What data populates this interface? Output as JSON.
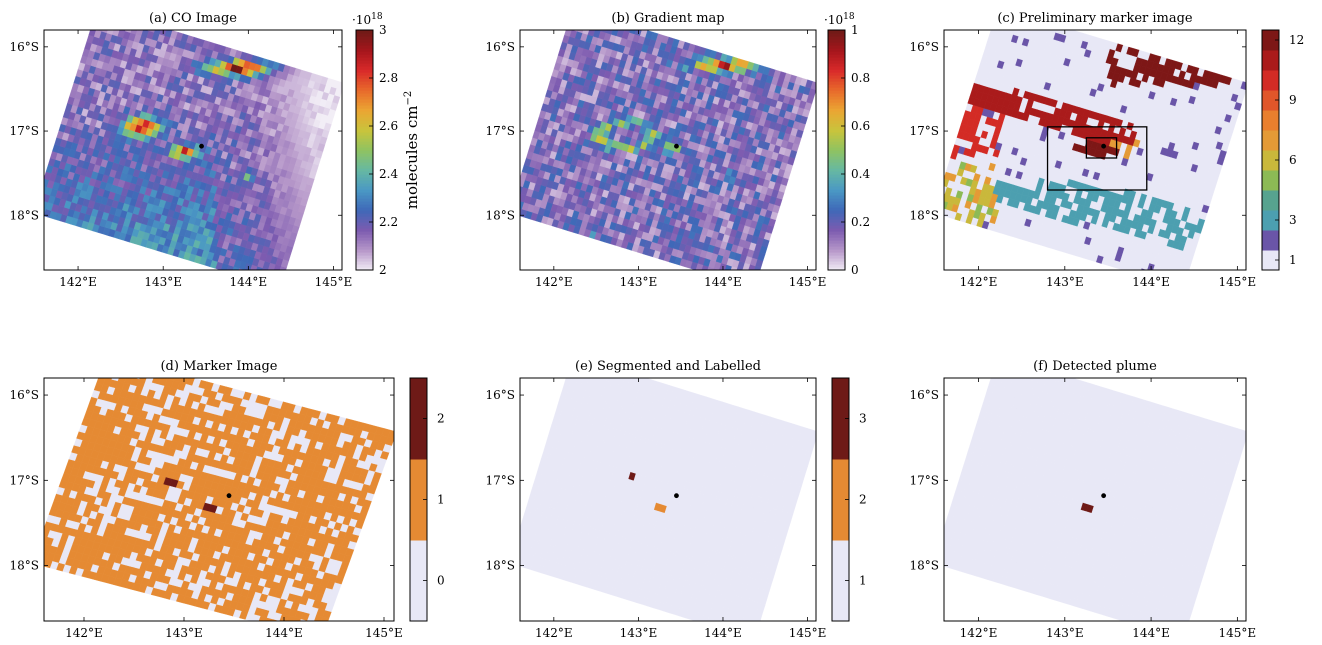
{
  "chart_data": [
    {
      "type": "heatmap",
      "title": "(a) CO Image",
      "xticks": [
        "142°E",
        "143°E",
        "144°E",
        "145°E"
      ],
      "yticks": [
        "16°S",
        "17°S",
        "18°S"
      ],
      "xlim": [
        141.6,
        145.1
      ],
      "ylim": [
        -18.65,
        -15.8
      ],
      "colorbar": {
        "range": [
          2.0,
          3.0
        ],
        "ticks": [
          "2",
          "2.2",
          "2.4",
          "2.6",
          "2.8",
          "3"
        ],
        "exponent": "·10",
        "exponent_power": "18",
        "label": "molecules cm",
        "label_power": "−2",
        "colors": [
          "#f2eef6",
          "#b697c9",
          "#7d5bb0",
          "#3f68b8",
          "#4a98c4",
          "#66b8a3",
          "#8fc361",
          "#c9c43c",
          "#eba533",
          "#e86a2b",
          "#d9292a",
          "#a4161c",
          "#6e1a17"
        ]
      },
      "marker": {
        "lon": 143.45,
        "lat": -17.18
      }
    },
    {
      "type": "heatmap",
      "title": "(b) Gradient map",
      "xticks": [
        "142°E",
        "143°E",
        "144°E",
        "145°E"
      ],
      "yticks": [
        "16°S",
        "17°S",
        "18°S"
      ],
      "xlim": [
        141.6,
        145.1
      ],
      "ylim": [
        -18.65,
        -15.8
      ],
      "colorbar": {
        "range": [
          0,
          1
        ],
        "ticks": [
          "0",
          "0.2",
          "0.4",
          "0.6",
          "0.8",
          "1"
        ],
        "exponent": "·10",
        "exponent_power": "18",
        "colors": [
          "#f2eef6",
          "#b697c9",
          "#7d5bb0",
          "#3f68b8",
          "#4a98c4",
          "#66b8a3",
          "#8fc361",
          "#c9c43c",
          "#eba533",
          "#e86a2b",
          "#d9292a",
          "#a4161c",
          "#6e1a17"
        ]
      },
      "marker": {
        "lon": 143.45,
        "lat": -17.18
      }
    },
    {
      "type": "heatmap",
      "title": "(c) Preliminary marker image",
      "xticks": [
        "142°E",
        "143°E",
        "144°E",
        "145°E"
      ],
      "yticks": [
        "16°S",
        "17°S",
        "18°S"
      ],
      "xlim": [
        141.6,
        145.1
      ],
      "ylim": [
        -18.65,
        -15.8
      ],
      "colorbar": {
        "levels": 12,
        "ticks": [
          "1",
          "3",
          "6",
          "9",
          "12"
        ],
        "colors": [
          "#e8e8f6",
          "#6a55a8",
          "#4c9fb0",
          "#57a38f",
          "#8cba55",
          "#c9b83b",
          "#e49a36",
          "#e97f2e",
          "#e0562a",
          "#d32b25",
          "#aa1b1b",
          "#7d1716"
        ]
      },
      "boxes": [
        {
          "lon": [
            142.8,
            143.95
          ],
          "lat": [
            -17.7,
            -16.95
          ]
        },
        {
          "lon": [
            143.25,
            143.6
          ],
          "lat": [
            -17.32,
            -17.08
          ]
        }
      ],
      "marker": {
        "lon": 143.45,
        "lat": -17.18
      }
    },
    {
      "type": "heatmap",
      "title": "(d) Marker Image",
      "xticks": [
        "142°E",
        "143°E",
        "144°E",
        "145°E"
      ],
      "yticks": [
        "16°S",
        "17°S",
        "18°S"
      ],
      "xlim": [
        141.6,
        145.1
      ],
      "ylim": [
        -18.65,
        -15.8
      ],
      "colorbar": {
        "levels": 3,
        "ticks": [
          "0",
          "1",
          "2"
        ],
        "colors": [
          "#e8e8f6",
          "#e58a33",
          "#6e1a17"
        ]
      },
      "marker": {
        "lon": 143.45,
        "lat": -17.18
      }
    },
    {
      "type": "heatmap",
      "title": "(e) Segmented and Labelled",
      "xticks": [
        "142°E",
        "143°E",
        "144°E",
        "145°E"
      ],
      "yticks": [
        "16°S",
        "17°S",
        "18°S"
      ],
      "xlim": [
        141.6,
        145.1
      ],
      "ylim": [
        -18.65,
        -15.8
      ],
      "colorbar": {
        "levels": 3,
        "ticks": [
          "1",
          "2",
          "3"
        ],
        "colors": [
          "#e8e8f6",
          "#e58a33",
          "#6e1a17"
        ]
      },
      "marker": {
        "lon": 143.45,
        "lat": -17.18
      }
    },
    {
      "type": "heatmap",
      "title": "(f) Detected plume",
      "xticks": [
        "142°E",
        "143°E",
        "144°E",
        "145°E"
      ],
      "yticks": [
        "16°S",
        "17°S",
        "18°S"
      ],
      "xlim": [
        141.6,
        145.1
      ],
      "ylim": [
        -18.65,
        -15.8
      ],
      "marker": {
        "lon": 143.45,
        "lat": -17.18
      }
    }
  ]
}
